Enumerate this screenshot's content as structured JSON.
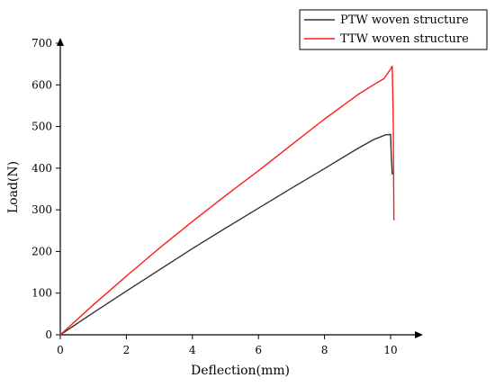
{
  "chart_data": {
    "type": "line",
    "title": "",
    "xlabel": "Deflection(mm)",
    "ylabel": "Load(N)",
    "xlim": [
      0,
      10.6
    ],
    "ylim": [
      0,
      700
    ],
    "xticks": [
      "0",
      "2",
      "4",
      "6",
      "8",
      "10"
    ],
    "yticks": [
      "0",
      "100",
      "200",
      "300",
      "400",
      "500",
      "600",
      "700"
    ],
    "grid": false,
    "legend_position": "top-right",
    "series": [
      {
        "name": "PTW woven structure",
        "color": "#333333",
        "x": [
          0,
          1,
          2,
          3,
          4,
          5,
          6,
          7,
          8,
          9,
          9.5,
          9.85,
          10.0,
          10.02,
          10.05
        ],
        "y": [
          0,
          53,
          105,
          156,
          207,
          256,
          304,
          352,
          399,
          447,
          469,
          480,
          481,
          430,
          385
        ]
      },
      {
        "name": "TTW woven structure",
        "color": "#ff1a1a",
        "x": [
          0,
          1,
          2,
          3,
          4,
          5,
          6,
          7,
          8,
          9,
          9.5,
          9.8,
          9.95,
          10.0,
          10.05,
          10.08,
          10.1
        ],
        "y": [
          0,
          72,
          141,
          208,
          272,
          334,
          394,
          456,
          518,
          576,
          601,
          615,
          632,
          638,
          645,
          520,
          275
        ]
      }
    ]
  }
}
